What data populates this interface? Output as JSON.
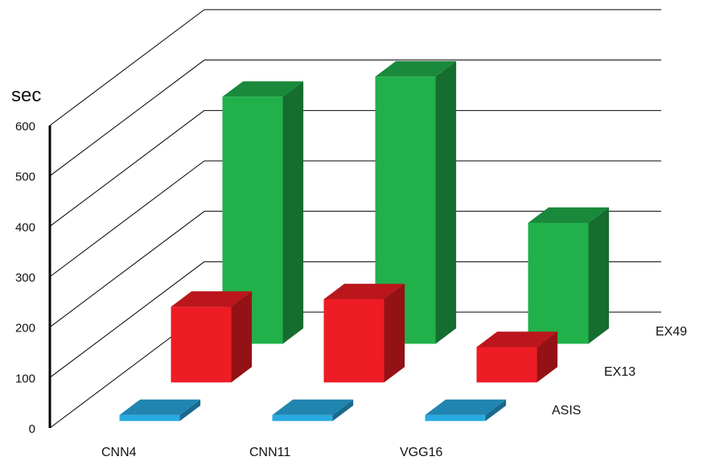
{
  "chart_data": {
    "type": "bar",
    "subtype": "3d-grouped-depth",
    "ylabel": "sec",
    "ylim": [
      0,
      600
    ],
    "yticks": [
      "0",
      "100",
      "200",
      "300",
      "400",
      "500",
      "600"
    ],
    "categories": [
      "CNN4",
      "CNN11",
      "VGG16"
    ],
    "series": [
      {
        "name": "ASIS",
        "values": [
          0,
          0,
          0
        ],
        "color": "#29abe2"
      },
      {
        "name": "EX13",
        "values": [
          150,
          165,
          70
        ],
        "color": "#ee1c24"
      },
      {
        "name": "EX49",
        "values": [
          490,
          530,
          240
        ],
        "color": "#22b04b"
      }
    ],
    "grid": true
  }
}
